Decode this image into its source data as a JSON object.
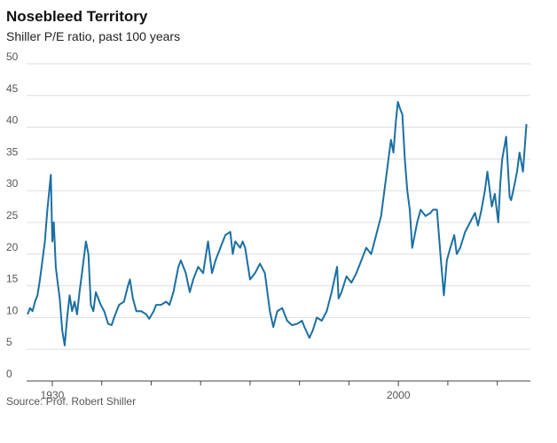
{
  "chart_data": {
    "type": "line",
    "title": "Nosebleed Territory",
    "subtitle": "Shiller P/E ratio, past 100 years",
    "source": "Source: Prof. Robert Shiller",
    "color": "#1b6fa3",
    "grid": true,
    "xlim": [
      1924.8,
      2026.7
    ],
    "xticks": [
      1930,
      2000
    ],
    "xminor_ticks": [
      1940,
      1950,
      1960,
      1970,
      1980,
      1990,
      2010,
      2020
    ],
    "ylim": [
      0,
      50
    ],
    "yticks": [
      0,
      5,
      10,
      15,
      20,
      25,
      30,
      35,
      40,
      45,
      50
    ],
    "x": [
      1925.0,
      1925.5,
      1926,
      1926.5,
      1927,
      1927.5,
      1928,
      1928.5,
      1929,
      1929.7,
      1930,
      1930.3,
      1930.7,
      1931,
      1931.5,
      1932,
      1932.5,
      1933,
      1933.5,
      1934,
      1934.5,
      1935,
      1935.5,
      1936,
      1936.8,
      1937.3,
      1937.8,
      1938.3,
      1938.8,
      1939.3,
      1939.8,
      1940.5,
      1941.3,
      1942,
      1942.5,
      1943.5,
      1944.5,
      1945.3,
      1945.7,
      1946.3,
      1947,
      1948,
      1949,
      1949.6,
      1950.5,
      1951,
      1952,
      1953,
      1953.7,
      1954.5,
      1955.5,
      1956,
      1957,
      1957.8,
      1958.5,
      1959.5,
      1960.5,
      1961.5,
      1962.3,
      1963,
      1964,
      1965,
      1966,
      1966.5,
      1967,
      1968,
      1968.5,
      1969,
      1970,
      1971,
      1972,
      1973,
      1974,
      1974.7,
      1975.5,
      1976.5,
      1977.5,
      1978.5,
      1979.5,
      1980.5,
      1981,
      1982,
      1982.7,
      1983.5,
      1984.5,
      1985.5,
      1986.5,
      1987.6,
      1987.9,
      1988.5,
      1989.5,
      1990.5,
      1991.5,
      1992.5,
      1993.5,
      1994.5,
      1995.5,
      1996.5,
      1997.5,
      1998.5,
      1999,
      1999.5,
      1999.9,
      2000.3,
      2000.8,
      2001.3,
      2001.8,
      2002.3,
      2002.8,
      2003.3,
      2003.8,
      2004.5,
      2005.5,
      2006.5,
      2007,
      2007.8,
      2008.5,
      2009.2,
      2009.8,
      2010.5,
      2011.3,
      2011.8,
      2012.5,
      2013.5,
      2014.5,
      2015.5,
      2016.1,
      2016.8,
      2017.5,
      2018,
      2018.9,
      2019.5,
      2020.2,
      2020.6,
      2021,
      2021.8,
      2022.5,
      2022.8,
      2023.5,
      2024,
      2024.5,
      2025.2,
      2025.9
    ],
    "values": [
      10.5,
      11.5,
      11,
      12.5,
      13.5,
      16,
      19,
      22,
      27,
      32.5,
      22,
      25,
      18,
      16,
      13,
      8,
      5.6,
      10,
      13.5,
      11,
      12.5,
      10.5,
      14,
      17,
      22,
      20,
      12,
      11,
      14,
      13,
      12,
      11,
      9,
      8.8,
      10,
      12,
      12.5,
      15,
      16,
      13,
      11,
      11,
      10.5,
      9.8,
      11,
      12,
      12,
      12.5,
      12,
      14,
      18,
      19,
      17,
      14,
      16,
      18,
      17,
      22,
      17,
      19,
      21,
      23,
      23.5,
      20,
      22,
      21,
      22,
      21,
      16,
      17,
      18.5,
      17,
      11,
      8.5,
      11,
      11.5,
      9.5,
      8.8,
      9,
      9.5,
      8.5,
      6.8,
      8,
      10,
      9.5,
      11,
      14,
      18,
      13,
      14,
      16.5,
      15.5,
      17,
      19,
      21,
      20,
      23,
      26,
      32,
      38,
      36,
      41,
      44,
      43,
      42,
      35,
      30,
      27,
      21,
      23,
      25,
      27,
      26,
      26.5,
      27,
      27,
      20,
      13.5,
      19,
      21,
      23,
      20,
      21,
      23.5,
      25,
      26.5,
      24.5,
      27,
      30,
      33,
      27.5,
      29.5,
      25,
      31,
      35,
      38.5,
      29,
      28.5,
      31,
      33,
      36,
      33,
      40.5
    ]
  }
}
